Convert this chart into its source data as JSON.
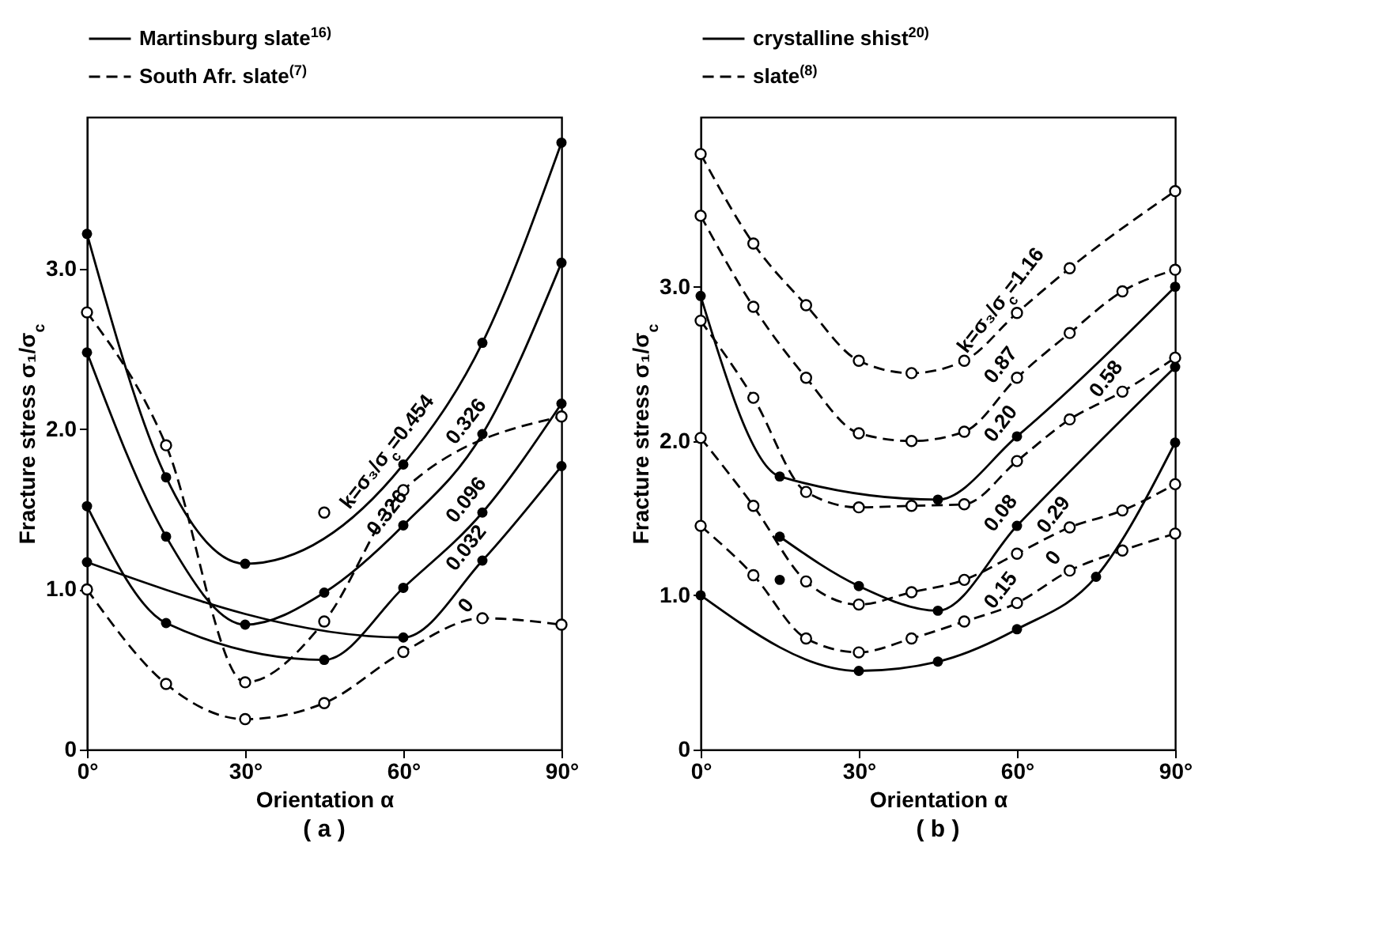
{
  "chart_data": [
    {
      "type": "line",
      "title": "( a )",
      "xlabel": "Orientation α",
      "ylabel": "Fracture stress  σ₁/σ$_{c}$",
      "xlim": [
        0,
        90
      ],
      "xticks": [
        {
          "value": 0,
          "label": "0°"
        },
        {
          "value": 30,
          "label": "30°"
        },
        {
          "value": 60,
          "label": "60°"
        },
        {
          "value": 90,
          "label": "90°"
        }
      ],
      "ylim": [
        0,
        3.95
      ],
      "yticks": [
        0,
        {
          "value": 1,
          "label": "1.0"
        },
        {
          "value": 2,
          "label": "2.0"
        },
        {
          "value": 3,
          "label": "3.0"
        }
      ],
      "marker": "circle",
      "annotations": [
        "Martinsburg slate$^{16)}$",
        "South Afr. slate$^{(7)}$",
        {
          "text": "k=σ₃/σ$_{c}$=0.454",
          "x": 60,
          "y": 1.78
        },
        {
          "text": "0.326",
          "x": 60,
          "y": 1.4
        },
        {
          "text": "0.326",
          "x": 75,
          "y": 1.97
        },
        {
          "text": "0.096",
          "x": 75,
          "y": 1.48
        },
        {
          "text": "0.032",
          "x": 75,
          "y": 1.18
        },
        {
          "text": "0",
          "x": 75,
          "y": 0.82
        }
      ],
      "series": [
        {
          "type": "line",
          "line_style": "solid",
          "color": "#000000",
          "x": [
            0,
            15,
            30,
            60,
            75,
            90
          ],
          "values": [
            3.22,
            1.7,
            1.16,
            1.78,
            2.54,
            3.79
          ]
        },
        {
          "type": "line",
          "line_style": "solid",
          "color": "#000000",
          "x": [
            0,
            15,
            30,
            45,
            60,
            75,
            90
          ],
          "values": [
            2.48,
            1.33,
            0.78,
            0.98,
            1.4,
            1.97,
            3.04
          ]
        },
        {
          "type": "line",
          "line_style": "solid",
          "color": "#000000",
          "x": [
            0,
            15,
            45,
            60,
            75,
            90
          ],
          "values": [
            1.52,
            0.79,
            0.56,
            1.01,
            1.48,
            2.16
          ]
        },
        {
          "type": "line",
          "line_style": "solid",
          "color": "#000000",
          "x": [
            0,
            60,
            75,
            90
          ],
          "values": [
            1.17,
            0.7,
            1.18,
            1.77
          ]
        },
        {
          "type": "line",
          "line_style": "dashed",
          "color": "#000000",
          "x": [
            0,
            15,
            30,
            45,
            60,
            90
          ],
          "values": [
            2.73,
            1.9,
            0.42,
            0.8,
            1.62,
            2.08
          ]
        },
        {
          "type": "line",
          "line_style": "dashed",
          "color": "#000000",
          "x": [
            0,
            15,
            30,
            45,
            60,
            75,
            90
          ],
          "values": [
            1.0,
            0.41,
            0.19,
            0.29,
            0.61,
            0.82,
            0.78
          ]
        },
        {
          "type": "scatter",
          "line_style": "dashed",
          "color": "#000000",
          "x": [
            45
          ],
          "values": [
            1.48
          ]
        }
      ]
    },
    {
      "type": "line",
      "title": "( b )",
      "xlabel": "Orientation α",
      "ylabel": "Fracture stress  σ₁/σ$_{c}$",
      "xlim": [
        0,
        90
      ],
      "xticks": [
        {
          "value": 0,
          "label": "0°"
        },
        {
          "value": 30,
          "label": "30°"
        },
        {
          "value": 60,
          "label": "60°"
        },
        {
          "value": 90,
          "label": "90°"
        }
      ],
      "ylim": [
        0,
        4.1
      ],
      "yticks": [
        0,
        {
          "value": 1,
          "label": "1.0"
        },
        {
          "value": 2,
          "label": "2.0"
        },
        {
          "value": 3,
          "label": "3.0"
        }
      ],
      "marker": "circle",
      "annotations": [
        "crystalline shist$^{20)}$",
        "slate$^{(8)}$",
        {
          "text": "k=σ₃/σ$_{c}$=1.16",
          "x": 60,
          "y": 2.83
        },
        {
          "text": "0.87",
          "x": 60,
          "y": 2.41
        },
        {
          "text": "0.58",
          "x": 80,
          "y": 2.32
        },
        {
          "text": "0.20",
          "x": 60,
          "y": 2.03
        },
        {
          "text": "0.08",
          "x": 60,
          "y": 1.45
        },
        {
          "text": "0.29",
          "x": 70,
          "y": 1.44
        },
        {
          "text": "0.15",
          "x": 60,
          "y": 0.95
        },
        {
          "text": "0",
          "x": 70,
          "y": 1.16
        }
      ],
      "series": [
        {
          "type": "line",
          "line_style": "solid",
          "color": "#000000",
          "x": [
            0,
            15,
            45,
            60,
            90
          ],
          "values": [
            2.94,
            1.77,
            1.62,
            2.03,
            3.0
          ]
        },
        {
          "type": "line",
          "line_style": "solid",
          "color": "#000000",
          "x": [
            15,
            30,
            45,
            60,
            90
          ],
          "values": [
            1.38,
            1.06,
            0.9,
            1.45,
            2.48
          ]
        },
        {
          "type": "line",
          "line_style": "solid",
          "color": "#000000",
          "x": [
            0,
            30,
            45,
            60,
            75,
            90
          ],
          "values": [
            1.0,
            0.51,
            0.57,
            0.78,
            1.12,
            1.99
          ]
        },
        {
          "type": "scatter",
          "line_style": "solid",
          "color": "#000000",
          "x": [
            15
          ],
          "values": [
            1.1
          ]
        },
        {
          "type": "line",
          "line_style": "dashed",
          "color": "#000000",
          "x": [
            0,
            10,
            20,
            30,
            40,
            50,
            60,
            70,
            90
          ],
          "values": [
            3.86,
            3.28,
            2.88,
            2.52,
            2.44,
            2.52,
            2.83,
            3.12,
            3.62
          ]
        },
        {
          "type": "line",
          "line_style": "dashed",
          "color": "#000000",
          "x": [
            0,
            10,
            20,
            30,
            40,
            50,
            60,
            70,
            80,
            90
          ],
          "values": [
            3.46,
            2.87,
            2.41,
            2.05,
            2.0,
            2.06,
            2.41,
            2.7,
            2.97,
            3.11
          ]
        },
        {
          "type": "line",
          "line_style": "dashed",
          "color": "#000000",
          "x": [
            0,
            10,
            20,
            30,
            40,
            50,
            60,
            70,
            80,
            90
          ],
          "values": [
            2.78,
            2.28,
            1.67,
            1.57,
            1.58,
            1.59,
            1.87,
            2.14,
            2.32,
            2.54
          ]
        },
        {
          "type": "line",
          "line_style": "dashed",
          "color": "#000000",
          "x": [
            0,
            10,
            20,
            30,
            40,
            50,
            60,
            70,
            80,
            90
          ],
          "values": [
            2.02,
            1.58,
            1.09,
            0.94,
            1.02,
            1.1,
            1.27,
            1.44,
            1.55,
            1.72
          ]
        },
        {
          "type": "line",
          "line_style": "dashed",
          "color": "#000000",
          "x": [
            0,
            10,
            20,
            30,
            40,
            50,
            60,
            70,
            80,
            90
          ],
          "values": [
            1.45,
            1.13,
            0.72,
            0.63,
            0.72,
            0.83,
            0.95,
            1.16,
            1.29,
            1.4
          ]
        }
      ]
    }
  ]
}
